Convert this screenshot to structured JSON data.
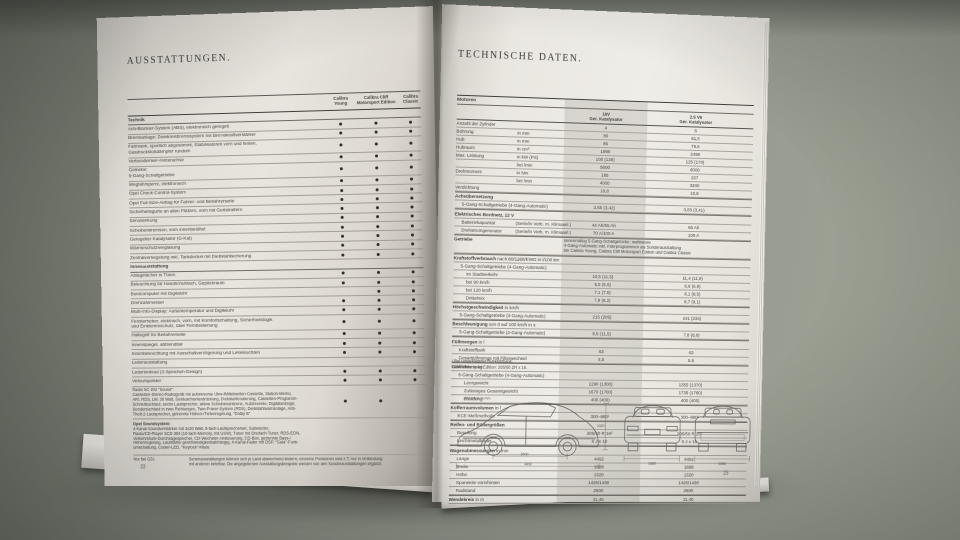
{
  "scene": {
    "background_color": "#8b8f85",
    "paper_color": "#ece9e3",
    "text_color": "#44423e",
    "rule_color": "#9b968d",
    "shadow_color": "#2a2925"
  },
  "left_page": {
    "title": "AUSSTATTUNGEN.",
    "page_number": "22",
    "columns": [
      [
        "Calibra",
        "Young"
      ],
      [
        "Calibra Cliff",
        "Motorsport Edition"
      ],
      [
        "Calibra",
        "Classic"
      ]
    ],
    "rows": [
      {
        "section": "Technik"
      },
      {
        "text": "Anti-Blockier-System (ABS), elektronisch geregelt",
        "b": [
          1,
          1,
          1
        ]
      },
      {
        "text": "Bremsanlage: Zweikreisbremssystem mit Bremskraftverstärker",
        "b": [
          1,
          1,
          1
        ]
      },
      {
        "lines": [
          "Fahrwerk, sportlich abgestimmt, Stabilisatoren vorn und hinten,",
          "Gasdruckstoßdämpfer rundum"
        ],
        "b": [
          1,
          1,
          1
        ]
      },
      {
        "text": "Verbundlenker-Hinterachse",
        "b": [
          1,
          1,
          1
        ]
      },
      {
        "lines": [
          "Getriebe:",
          "5-Gang-Schaltgetriebe"
        ],
        "b": [
          1,
          1,
          1
        ]
      },
      {
        "text": "Wegfahrsperre, elektronisch",
        "b": [
          1,
          1,
          1
        ]
      },
      {
        "text": "Opel Check-Control-System",
        "b": [
          1,
          1,
          1
        ]
      },
      {
        "text": "Opel Full-Size-Airbag für Fahrer- und Beifahrerseite",
        "b": [
          1,
          1,
          1
        ]
      },
      {
        "text": "Sicherheitsgurte an allen Plätzen, vorn mit Gurtstraffern",
        "b": [
          1,
          1,
          1
        ]
      },
      {
        "text": "Servolenkung",
        "b": [
          1,
          1,
          1
        ]
      },
      {
        "text": "Scheibenbremsen, vorn innenbelüftet",
        "b": [
          1,
          1,
          1
        ]
      },
      {
        "text": "Geregelter Katalysator (G-Kat)",
        "b": [
          1,
          1,
          1
        ]
      },
      {
        "text": "Wärmeschutzverglasung",
        "b": [
          1,
          1,
          1
        ]
      },
      {
        "text": "Zentralverriegelung inkl. Tankdeckel mit Diebstahlsicherung",
        "b": [
          1,
          1,
          1
        ]
      },
      {
        "section": "Innenausstattung"
      },
      {
        "text": "Ablagefächer in Türen",
        "b": [
          1,
          1,
          1
        ]
      },
      {
        "text": "Beleuchtung für Handschuhfach, Gepäckraum",
        "b": [
          1,
          1,
          1
        ]
      },
      {
        "text": "Bordcomputer mit Digitaluhr",
        "b": [
          0,
          1,
          1
        ]
      },
      {
        "text": "Drehzahlmesser",
        "b": [
          1,
          1,
          1
        ]
      },
      {
        "text": "Multi-Info-Display: Außentemperatur und Digitaluhr",
        "b": [
          1,
          1,
          1
        ]
      },
      {
        "lines": [
          "Fensterheber, elektrisch, vorn, mit Komfortschaltung, Sicherheitslogik",
          "und Einklemmschutz, über Fernbedienung"
        ],
        "b": [
          1,
          1,
          1
        ]
      },
      {
        "text": "Haltegriff für Beifahrerseite",
        "b": [
          1,
          1,
          1
        ]
      },
      {
        "text": "Innenspiegel, abblendbar",
        "b": [
          1,
          1,
          1
        ]
      },
      {
        "text": "Innenbeleuchtung mit Ausschaltverzögerung und Leseleuchten",
        "b": [
          1,
          1,
          1
        ]
      },
      {
        "text": "Lederausstattung",
        "b": [
          0,
          0,
          0
        ]
      },
      {
        "text": "Lederlenkrad (3-Speichen-Design)",
        "b": [
          1,
          1,
          1
        ]
      },
      {
        "text": "Velourspolster",
        "b": [
          1,
          1,
          1
        ]
      },
      {
        "small": true,
        "lines": [
          "Radio SC 202 \"Sound\":",
          "Cassetten-Stereo-Radiogerät mit autoreverse Ukw-/Mittelwellen-Cassette, Station-Memo,",
          "ARI, RDS, LW, 30 Watt, Geräuschunterdrückung, Diebstahlcodierung, Cassetten-Programm-",
          "Schnellsuchlauf, sechs Lautsprecher, aktive Scheibenantenne, Autoreverse, Digitalanzeige,",
          "Sendersuchlauf in zwei Richtungen, Twin-Power-System (RDS), Diebstahlwarnanlage, Anti-",
          "Theft-2-Lautsprecher, getrennte Höhen-/Tiefenregelung, \"Dolby B\""
        ],
        "b": [
          1,
          1,
          0
        ]
      }
    ],
    "option_block": {
      "title": "Opel Soundsystem:",
      "lines": [
        "4-Kanal-Soundverstärker mit 4x20 Watt, 8-fach-Lautsprecherset, Subwoofer,",
        "Radio/CD-Player SCD 304 (10-fach-Memory, mit USW), Tuner mit Dreifach-Tuner, RDS-EON,",
        "Verkehrsfunk-Durchsagespeicher, CD-Wechsler-Ansteuerung, CD-Box, getrennte Bass-/",
        "Höhenregelung, Lautstärke geschwindigkeitsabhängig, 4-Kanal-Fader mit DSP, \"Gala\"-Funk-",
        "umschaltung, Codier-LED, \"Keylock\"-Mode"
      ]
    },
    "footnote": {
      "label": "Nur bei GSi:",
      "lines": [
        "Serienausstattungen können sich je Land abweichend ändern; einzelne Positionen sind z.T. nur in Verbindung",
        "mit anderen lieferbar. Die angegebenen Ausstattungsbeispiele werden von den Sonderausstattungen ergänzt."
      ]
    }
  },
  "right_page": {
    "title": "TECHNISCHE DATEN.",
    "page_number": "23",
    "table_header": "Motoren",
    "columns": [
      [
        "16V",
        "Ger. Katalysator"
      ],
      [
        "2.5 V6",
        "Ger. Katalysator"
      ]
    ],
    "rows": [
      {
        "l": "Anzahl der Zylinder",
        "v1": "4",
        "v2": "6"
      },
      {
        "l": "Bohrung",
        "s": "in mm",
        "v1": "86",
        "v2": "81,6"
      },
      {
        "l": "Hub",
        "s": "in mm",
        "v1": "86",
        "v2": "79,6"
      },
      {
        "l": "Hubraum",
        "s": "in cm³",
        "v1": "1998",
        "v2": "2498"
      },
      {
        "l": "Max. Leistung",
        "s": "in kW (PS)",
        "v1": "100 (136)",
        "v2": "125 (170)"
      },
      {
        "l": "",
        "s": "bei /min",
        "v1": "5600",
        "v2": "6000"
      },
      {
        "l": "Drehmoment",
        "s": "in Nm",
        "v1": "185",
        "v2": "227"
      },
      {
        "l": "",
        "s": "bei /min",
        "v1": "4000",
        "v2": "3200"
      },
      {
        "l": "Verdichtung",
        "v1": "10,8",
        "v2": "10,8"
      },
      {
        "sec": "Achsübersetzung"
      },
      {
        "l": "5-Gang-Schaltgetriebe (4-Gang-Automatic)",
        "i": 1,
        "v1": "3,55 (3,42)",
        "v2": "3,83 (3,41)"
      },
      {
        "sec": "Elektrisches Bordnetz, 12 V"
      },
      {
        "l": "Batteriekapazität",
        "i": 1,
        "s": "(Serie/in Verb. m. Klimaanl.)",
        "v1": "44 Ah/55 Ah",
        "v2": "66 Ah"
      },
      {
        "l": "Drehstromgenerator",
        "i": 1,
        "s": "(Serie/in Verb. m. Klimaanl.)",
        "v1": "70 A/100 A",
        "v2": "100 A"
      },
      {
        "sec": "Getriebe",
        "span": [
          "serienmäßig 5-Gang-Schaltgetriebe; wahlweise",
          "4-Gang-Automatic inkl. Fahrprogrammen als Sonderausstattung",
          "bei Calibra Young, Calibra Cliff Motorsport Edition und Calibra Classic"
        ]
      },
      {
        "sec": "Kraftstoffverbrauch",
        "suf": " nach 80/1268/EWG in l/100 km"
      },
      {
        "l": "5-Gang-Schaltgetriebe (4-Gang-Automatic)",
        "i": 1
      },
      {
        "l": "im Stadtverkehr",
        "i2": 1,
        "v1": "10,5 (11,5)",
        "v2": "11,4 (11,8)"
      },
      {
        "l": "bei 90 km/h",
        "i2": 1,
        "v1": "5,5 (5,9)",
        "v2": "6,6 (6,9)"
      },
      {
        "l": "bei 120 km/h",
        "i2": 1,
        "v1": "7,1 (7,5)",
        "v2": "8,1 (8,5)"
      },
      {
        "l": "Drittelmix",
        "i2": 1,
        "v1": "7,9 (8,2)",
        "v2": "8,7 (9,1)"
      },
      {
        "sec": "Höchstgeschwindigkeit",
        "suf": " in km/h"
      },
      {
        "l": "5-Gang-Schaltgetriebe (4-Gang-Automatic)",
        "i": 1,
        "v1": "215 (205)",
        "v2": "241 (234)"
      },
      {
        "sec": "Beschleunigung",
        "suf": " von 0 auf 100 km/h in s"
      },
      {
        "l": "5-Gang-Schaltgetriebe (4-Gang-Automatic)",
        "i": 1,
        "v1": "9,5 (11,5)",
        "v2": "7,8 (8,8)"
      },
      {
        "sec": "Füllmengen",
        "suf": " in l"
      },
      {
        "l": "Kraftstofftank",
        "i": 1,
        "v1": "63",
        "v2": "63"
      },
      {
        "l": "Gesamtölmenge mit Filterwechsel",
        "i": 1,
        "v1": "4,5",
        "v2": "5,5"
      },
      {
        "sec": "Gewichte",
        "suf": " in kg"
      },
      {
        "l": "5-Gang-Schaltgetriebe (4-Gang-Automatic)",
        "i": 1
      },
      {
        "l": "Leergewicht",
        "i2": 1,
        "v1": "1290 (1300)",
        "v2": "1355 (1370)"
      },
      {
        "l": "Zulässiges Gesamtgewicht",
        "i2": 1,
        "v1": "1670 (1700)",
        "v2": "1735 (1760)"
      },
      {
        "l": "Zuladung",
        "i2": 1,
        "v1": "400 (400)",
        "v2": "400 (405)"
      },
      {
        "sec": "Kofferraumvolumen",
        "suf": " in l"
      },
      {
        "l": "ECE-Meßmethode",
        "i": 1,
        "v1": "300–980¹",
        "v2": "300–980¹"
      },
      {
        "sec": "Reifen- und Rädergrößen"
      },
      {
        "l": "Bereifung",
        "i": 1,
        "v1": "205/50 R 16²",
        "v2": "205/50 R 16²"
      },
      {
        "l": "Leichtmetallräder",
        "i": 1,
        "v1": "6 J x 16",
        "v2": "6 J x 16"
      },
      {
        "sec": "Wagenabmessungen",
        "suf": " in mm"
      },
      {
        "l": "Länge",
        "i": 1,
        "v1": "4492",
        "v2": "4492"
      },
      {
        "l": "Breite",
        "i": 1,
        "v1": "1688",
        "v2": "1688"
      },
      {
        "l": "Höhe",
        "i": 1,
        "v1": "1320",
        "v2": "1320"
      },
      {
        "l": "Spurweite vorn/hinten",
        "i": 1,
        "v1": "1426/1438",
        "v2": "1426/1438"
      },
      {
        "l": "Radstand",
        "i": 1,
        "v1": "2600",
        "v2": "2600"
      },
      {
        "sec": "Wendekreis",
        "suf": " in m",
        "v1": "11,40",
        "v2": "11,40"
      }
    ],
    "footnotes": [
      "¹ Bei umgeklappter Rücksitzbank.",
      "² Cliff Motorsport Edition: 205/50 ZR x 16."
    ],
    "drawing": {
      "caption": "Alle Maße in mm.",
      "wheelbase": "2600",
      "length": "4492",
      "height": "1320",
      "width_front": "1688",
      "width_rear": "1688"
    }
  }
}
